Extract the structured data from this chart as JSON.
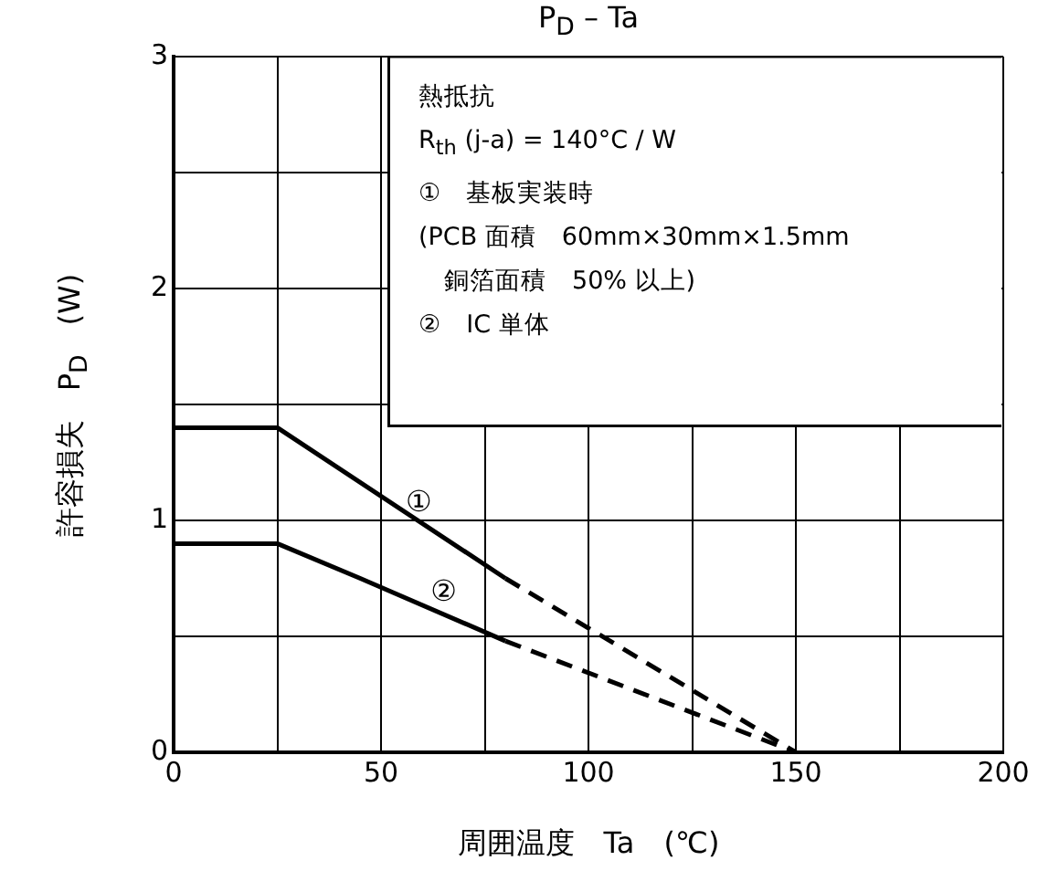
{
  "chart_data": {
    "type": "line",
    "title": "P$_{D}$ – Ta",
    "xlabel": "周囲温度　Ta　(℃)",
    "ylabel": "許容損失　P$_{D}$　(W)",
    "series": [
      {
        "name": "①",
        "color": "#000000",
        "line_style": "solid",
        "x": [
          0,
          25,
          80
        ],
        "values": [
          1.4,
          1.4,
          0.75
        ]
      },
      {
        "color": "#000000",
        "line_style": "dashed",
        "x": [
          80,
          150
        ],
        "values": [
          0.75,
          0
        ]
      },
      {
        "name": "②",
        "color": "#000000",
        "line_style": "solid",
        "x": [
          0,
          25,
          45,
          80
        ],
        "values": [
          0.9,
          0.9,
          0.75,
          0.48
        ]
      },
      {
        "color": "#000000",
        "line_style": "dashed",
        "x": [
          80,
          150
        ],
        "values": [
          0.48,
          0
        ]
      }
    ],
    "xlim": [
      0,
      200
    ],
    "xticks": [
      0,
      {
        "value": 25,
        "label": null
      },
      50,
      {
        "value": 75,
        "label": null
      },
      100,
      {
        "value": 125,
        "label": null
      },
      150,
      {
        "value": 175,
        "label": null
      },
      200
    ],
    "ylim": [
      0,
      3
    ],
    "yticks": [
      0,
      {
        "value": 0.5,
        "label": null
      },
      1,
      {
        "value": 1.5,
        "label": null
      },
      2,
      {
        "value": 2.5,
        "label": null
      },
      3
    ],
    "grid": true,
    "legend": false,
    "marker": "none",
    "annotations": [
      "熱抵抗",
      "R$_{th}$ (j-a) = 140°C / W",
      "①　基板実装時",
      "(PCB 面積　60mm×30mm×1.5mm",
      "　銅箔面積　50% 以上)",
      "②　IC 単体"
    ]
  }
}
